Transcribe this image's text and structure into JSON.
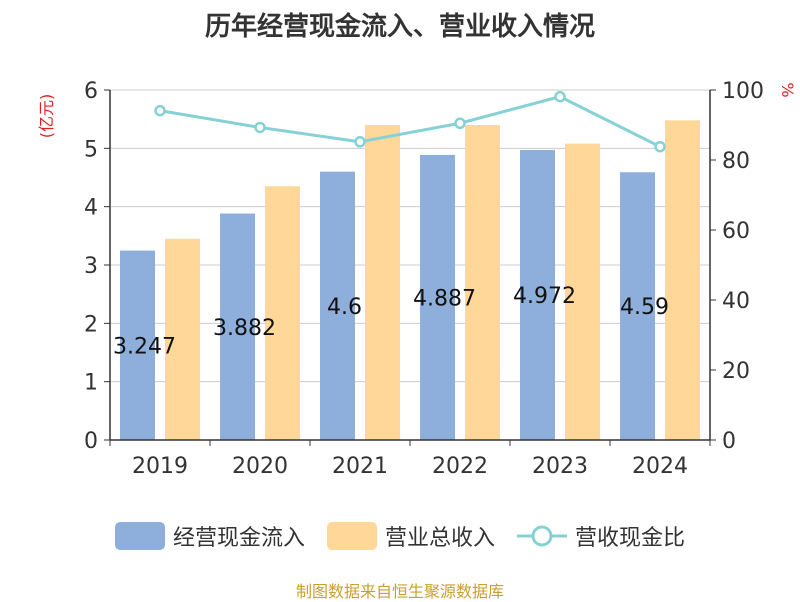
{
  "chart_data": {
    "type": "bar",
    "title": "历年经营现金流入、营业收入情况",
    "categories": [
      "2019",
      "2020",
      "2021",
      "2022",
      "2023",
      "2024"
    ],
    "series": [
      {
        "name": "经营现金流入",
        "type": "bar",
        "axis": "left",
        "color": "#8eaedb",
        "values": [
          3.247,
          3.882,
          4.6,
          4.887,
          4.972,
          4.59
        ],
        "labels": [
          "3.247",
          "3.882",
          "4.6",
          "4.887",
          "4.972",
          "4.59"
        ]
      },
      {
        "name": "营业总收入",
        "type": "bar",
        "axis": "left",
        "color": "#ffd899",
        "values": [
          3.45,
          4.35,
          5.4,
          5.4,
          5.08,
          5.48
        ]
      },
      {
        "name": "营收现金比",
        "type": "line",
        "axis": "right",
        "color": "#86d1d6",
        "values": [
          94.1,
          89.3,
          85.2,
          90.5,
          98.1,
          83.8
        ]
      }
    ],
    "left_axis": {
      "label": "(亿元)",
      "ylim": [
        0,
        6
      ],
      "ticks": [
        "0",
        "1",
        "2",
        "3",
        "4",
        "5",
        "6"
      ]
    },
    "right_axis": {
      "label": "%",
      "ylim": [
        0,
        100
      ],
      "ticks": [
        "0",
        "20",
        "40",
        "60",
        "80",
        "100"
      ]
    },
    "grid": true,
    "legend_position": "bottom"
  },
  "footer": {
    "source": "制图数据来自恒生聚源数据库",
    "source_color": "#c8a032"
  },
  "colors": {
    "axis_label": "#e02020",
    "gridline": "#cccccc",
    "axis": "#333333"
  }
}
